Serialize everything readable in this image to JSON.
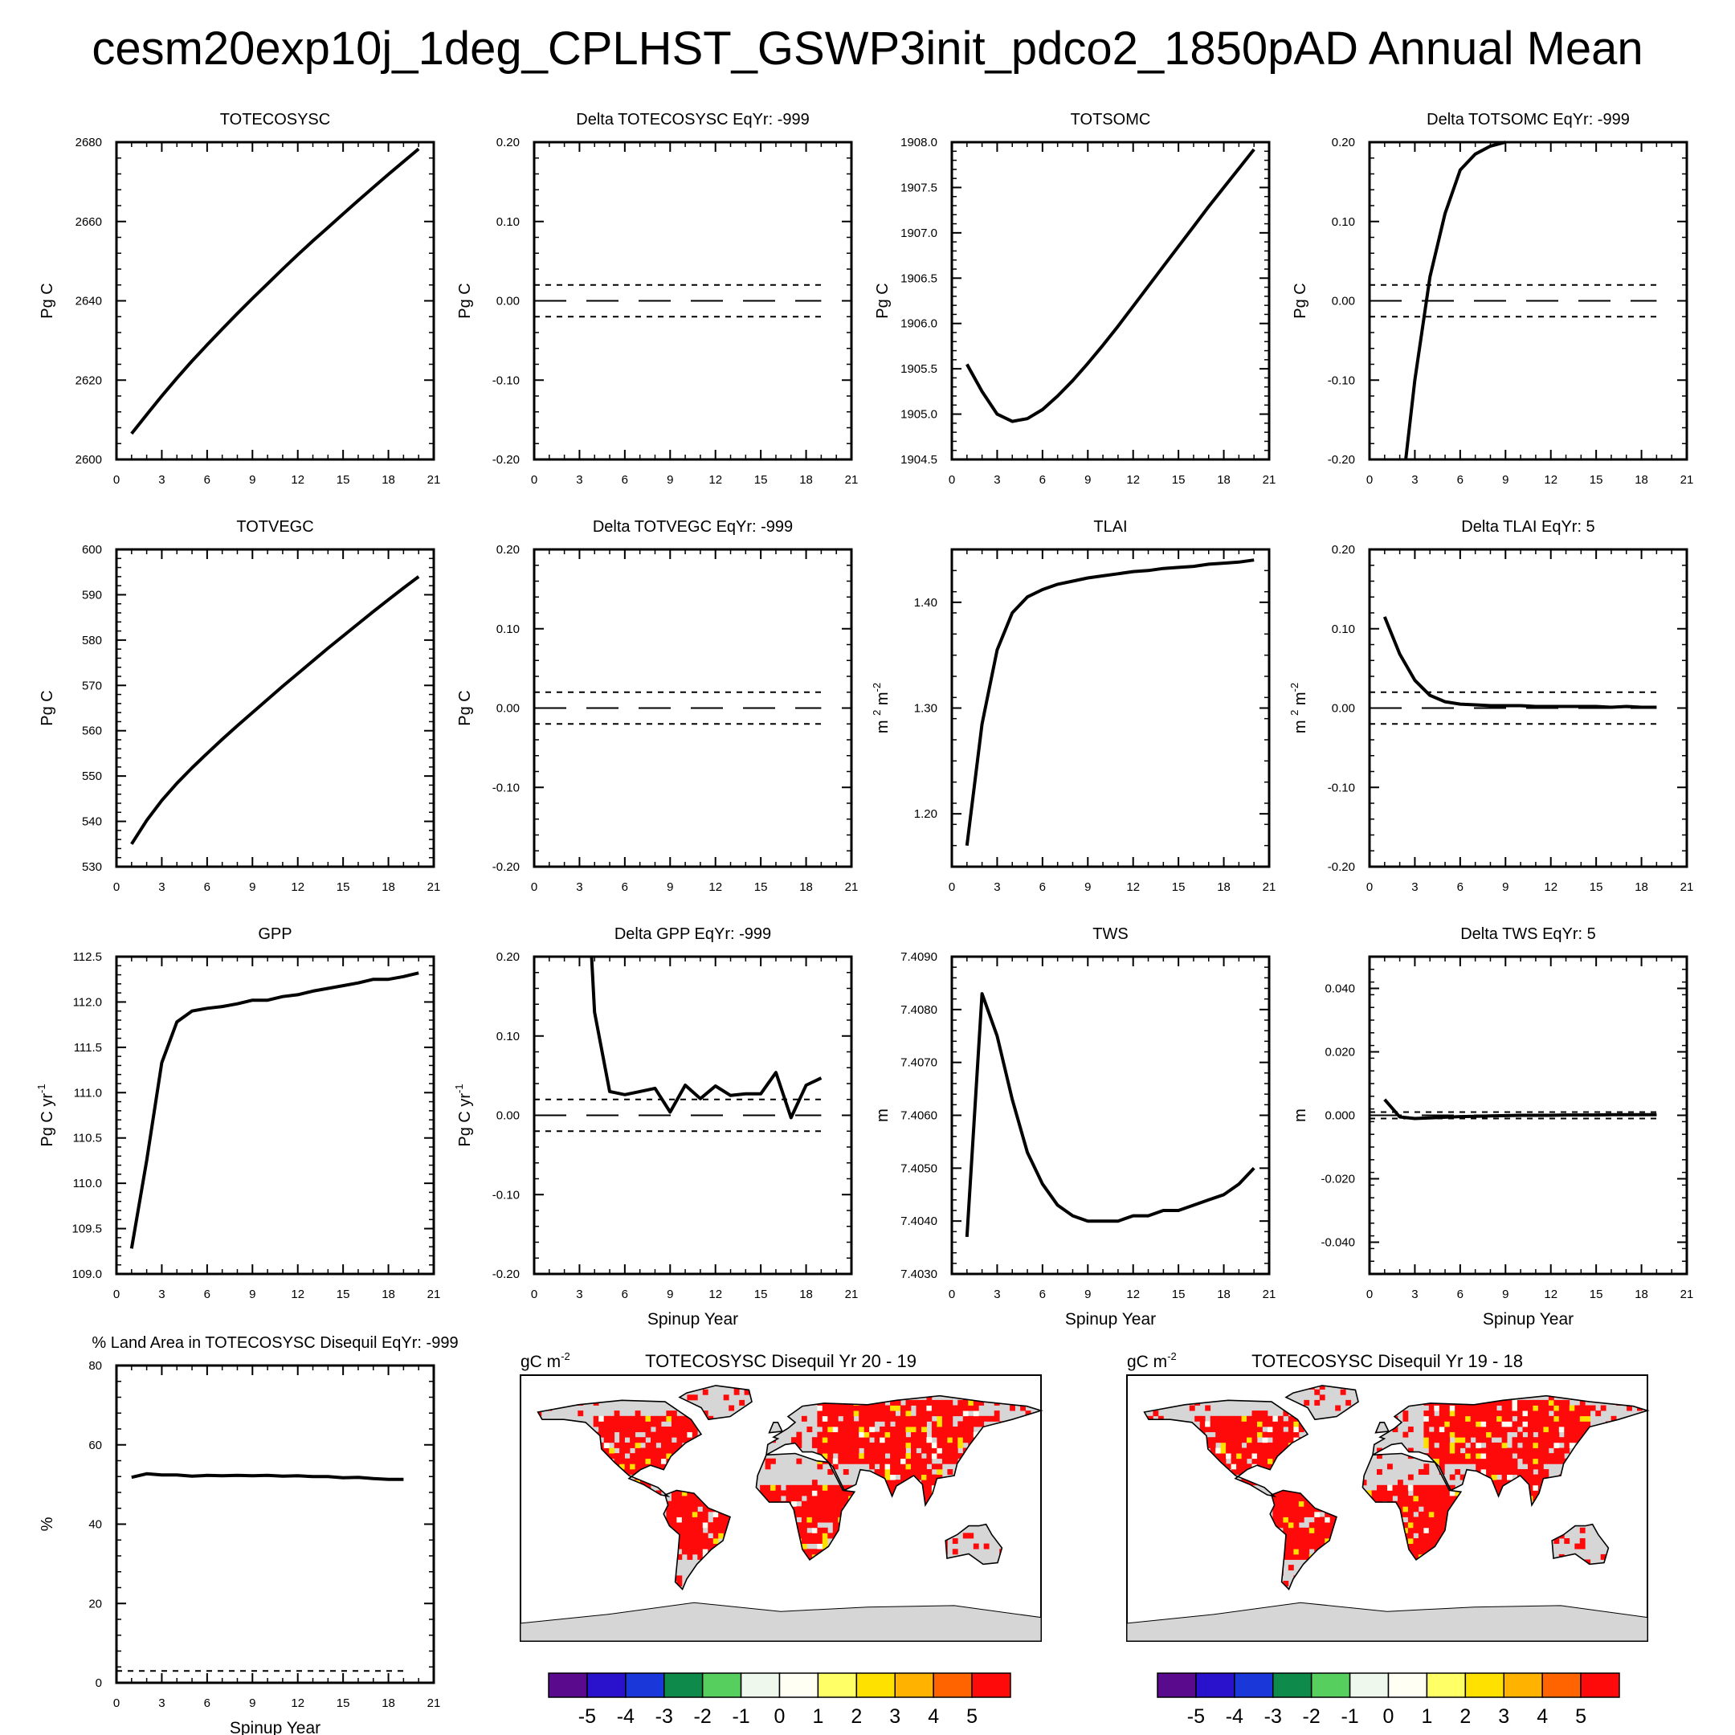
{
  "title": "cesm20exp10j_1deg_CPLHST_GSWP3init_pdco2_1850pAD Annual Mean",
  "chart_data": [
    {
      "type": "line",
      "title": "TOTECOSYSC",
      "ylabel": "Pg C",
      "xlabel": "",
      "xlim": [
        0,
        21
      ],
      "ylim": [
        2600,
        2680
      ],
      "xticks": [
        "0",
        "3",
        "6",
        "9",
        "12",
        "15",
        "18",
        "21"
      ],
      "yticks": [
        "2600",
        "2620",
        "2640",
        "2660",
        "2680"
      ],
      "x": [
        1,
        2,
        3,
        4,
        5,
        6,
        7,
        8,
        9,
        10,
        11,
        12,
        13,
        14,
        15,
        16,
        17,
        18,
        19,
        20
      ],
      "y": [
        2606.5,
        2611.3,
        2616.0,
        2620.5,
        2624.8,
        2628.9,
        2632.9,
        2636.8,
        2640.6,
        2644.3,
        2648.0,
        2651.6,
        2655.1,
        2658.5,
        2661.9,
        2665.3,
        2668.6,
        2671.9,
        2675.1,
        2678.3
      ],
      "ref_lines": []
    },
    {
      "type": "line",
      "title": "Delta TOTECOSYSC EqYr: -999",
      "ylabel": "Pg C",
      "xlabel": "",
      "xlim": [
        0,
        21
      ],
      "ylim": [
        -0.2,
        0.2
      ],
      "xticks": [
        "0",
        "3",
        "6",
        "9",
        "12",
        "15",
        "18",
        "21"
      ],
      "yticks": [
        "-0.20",
        "-0.10",
        "0.00",
        "0.10",
        "0.20"
      ],
      "x": [],
      "y": [],
      "ref_lines": [
        0.02,
        -0.02,
        0.0
      ]
    },
    {
      "type": "line",
      "title": "TOTSOMC",
      "ylabel": "Pg C",
      "xlabel": "",
      "xlim": [
        0,
        21
      ],
      "ylim": [
        1904.5,
        1908.0
      ],
      "xticks": [
        "0",
        "3",
        "6",
        "9",
        "12",
        "15",
        "18",
        "21"
      ],
      "yticks": [
        "1904.5",
        "1905.0",
        "1905.5",
        "1906.0",
        "1906.5",
        "1907.0",
        "1907.5",
        "1908.0"
      ],
      "x": [
        1,
        2,
        3,
        4,
        5,
        6,
        7,
        8,
        9,
        10,
        11,
        12,
        13,
        14,
        15,
        16,
        17,
        18,
        19,
        20
      ],
      "y": [
        1905.55,
        1905.25,
        1905.0,
        1904.92,
        1904.95,
        1905.05,
        1905.2,
        1905.37,
        1905.56,
        1905.76,
        1905.97,
        1906.19,
        1906.41,
        1906.63,
        1906.85,
        1907.07,
        1907.29,
        1907.5,
        1907.71,
        1907.92
      ],
      "ref_lines": []
    },
    {
      "type": "line",
      "title": "Delta TOTSOMC EqYr: -999",
      "ylabel": "Pg C",
      "xlabel": "",
      "xlim": [
        0,
        21
      ],
      "ylim": [
        -0.2,
        0.2
      ],
      "xticks": [
        "0",
        "3",
        "6",
        "9",
        "12",
        "15",
        "18",
        "21"
      ],
      "yticks": [
        "-0.20",
        "-0.10",
        "0.00",
        "0.10",
        "0.20"
      ],
      "x": [
        2.4,
        3,
        4,
        5,
        6,
        7,
        8,
        9
      ],
      "y": [
        -0.2,
        -0.1,
        0.03,
        0.11,
        0.165,
        0.185,
        0.195,
        0.2
      ],
      "ref_lines": [
        0.02,
        -0.02,
        0.0
      ]
    },
    {
      "type": "line",
      "title": "TOTVEGC",
      "ylabel": "Pg C",
      "xlabel": "",
      "xlim": [
        0,
        21
      ],
      "ylim": [
        530,
        600
      ],
      "xticks": [
        "0",
        "3",
        "6",
        "9",
        "12",
        "15",
        "18",
        "21"
      ],
      "yticks": [
        "530",
        "540",
        "550",
        "560",
        "570",
        "580",
        "590",
        "600"
      ],
      "x": [
        1,
        2,
        3,
        4,
        5,
        6,
        7,
        8,
        9,
        10,
        11,
        12,
        13,
        14,
        15,
        16,
        17,
        18,
        19,
        20
      ],
      "y": [
        535.0,
        540.2,
        544.6,
        548.4,
        551.8,
        555.0,
        558.1,
        561.1,
        564.0,
        566.9,
        569.8,
        572.6,
        575.4,
        578.2,
        580.9,
        583.6,
        586.3,
        588.9,
        591.5,
        594.0
      ],
      "ref_lines": []
    },
    {
      "type": "line",
      "title": "Delta TOTVEGC EqYr: -999",
      "ylabel": "Pg C",
      "xlabel": "",
      "xlim": [
        0,
        21
      ],
      "ylim": [
        -0.2,
        0.2
      ],
      "xticks": [
        "0",
        "3",
        "6",
        "9",
        "12",
        "15",
        "18",
        "21"
      ],
      "yticks": [
        "-0.20",
        "-0.10",
        "0.00",
        "0.10",
        "0.20"
      ],
      "x": [],
      "y": [],
      "ref_lines": [
        0.02,
        -0.02,
        0.0
      ]
    },
    {
      "type": "line",
      "title": "TLAI",
      "ylabel": "m 2 m-2",
      "xlabel": "",
      "xlim": [
        0,
        21
      ],
      "ylim": [
        1.15,
        1.45
      ],
      "xticks": [
        "0",
        "3",
        "6",
        "9",
        "12",
        "15",
        "18",
        "21"
      ],
      "yticks": [
        "1.20",
        "1.30",
        "1.40"
      ],
      "x": [
        1,
        2,
        3,
        4,
        5,
        6,
        7,
        8,
        9,
        10,
        11,
        12,
        13,
        14,
        15,
        16,
        17,
        18,
        19,
        20
      ],
      "y": [
        1.17,
        1.285,
        1.355,
        1.39,
        1.405,
        1.412,
        1.417,
        1.42,
        1.423,
        1.425,
        1.427,
        1.429,
        1.43,
        1.432,
        1.433,
        1.434,
        1.436,
        1.437,
        1.438,
        1.44
      ],
      "ref_lines": []
    },
    {
      "type": "line",
      "title": "Delta TLAI EqYr: 5",
      "ylabel": "m 2 m-2",
      "xlabel": "",
      "xlim": [
        0,
        21
      ],
      "ylim": [
        -0.2,
        0.2
      ],
      "xticks": [
        "0",
        "3",
        "6",
        "9",
        "12",
        "15",
        "18",
        "21"
      ],
      "yticks": [
        "-0.20",
        "-0.10",
        "0.00",
        "0.10",
        "0.20"
      ],
      "x": [
        1,
        2,
        3,
        4,
        5,
        6,
        7,
        8,
        9,
        10,
        11,
        12,
        13,
        14,
        15,
        16,
        17,
        18,
        19
      ],
      "y": [
        0.115,
        0.068,
        0.035,
        0.016,
        0.008,
        0.005,
        0.004,
        0.003,
        0.003,
        0.003,
        0.002,
        0.002,
        0.002,
        0.002,
        0.002,
        0.001,
        0.002,
        0.001,
        0.001
      ],
      "ref_lines": [
        0.02,
        -0.02,
        0.0
      ]
    },
    {
      "type": "line",
      "title": "GPP",
      "ylabel": "Pg C yr-1",
      "xlabel": "",
      "xlim": [
        0,
        21
      ],
      "ylim": [
        109,
        112.5
      ],
      "xticks": [
        "0",
        "3",
        "6",
        "9",
        "12",
        "15",
        "18",
        "21"
      ],
      "yticks": [
        "109.0",
        "109.5",
        "110.0",
        "110.5",
        "111.0",
        "111.5",
        "112.0",
        "112.5"
      ],
      "x": [
        1,
        2,
        3,
        4,
        5,
        6,
        7,
        8,
        9,
        10,
        11,
        12,
        13,
        14,
        15,
        16,
        17,
        18,
        19,
        20
      ],
      "y": [
        109.28,
        110.25,
        111.33,
        111.78,
        111.9,
        111.93,
        111.95,
        111.98,
        112.02,
        112.02,
        112.06,
        112.08,
        112.12,
        112.15,
        112.18,
        112.21,
        112.25,
        112.25,
        112.28,
        112.32
      ],
      "ref_lines": []
    },
    {
      "type": "line",
      "title": "Delta GPP EqYr: -999",
      "ylabel": "Pg C yr-1",
      "xlabel": "Spinup Year",
      "xlim": [
        0,
        21
      ],
      "ylim": [
        -0.2,
        0.2
      ],
      "xticks": [
        "0",
        "3",
        "6",
        "9",
        "12",
        "15",
        "18",
        "21"
      ],
      "yticks": [
        "-0.20",
        "-0.10",
        "0.00",
        "0.10",
        "0.20"
      ],
      "x": [
        3.8,
        4,
        5,
        6,
        7,
        8,
        9,
        10,
        11,
        12,
        13,
        14,
        15,
        16,
        17,
        18,
        19
      ],
      "y": [
        0.2,
        0.13,
        0.03,
        0.026,
        0.03,
        0.034,
        0.004,
        0.038,
        0.021,
        0.037,
        0.025,
        0.027,
        0.027,
        0.054,
        -0.003,
        0.038,
        0.047
      ],
      "ref_lines": [
        0.02,
        -0.02,
        0.0
      ]
    },
    {
      "type": "line",
      "title": "TWS",
      "ylabel": "m",
      "xlabel": "Spinup Year",
      "xlim": [
        0,
        21
      ],
      "ylim": [
        7.403,
        7.409
      ],
      "xticks": [
        "0",
        "3",
        "6",
        "9",
        "12",
        "15",
        "18",
        "21"
      ],
      "yticks": [
        "7.4030",
        "7.4040",
        "7.4050",
        "7.4060",
        "7.4070",
        "7.4080",
        "7.4090"
      ],
      "x": [
        1,
        2,
        3,
        4,
        5,
        6,
        7,
        8,
        9,
        10,
        11,
        12,
        13,
        14,
        15,
        16,
        17,
        18,
        19,
        20
      ],
      "y": [
        7.4037,
        7.4083,
        7.4075,
        7.4063,
        7.4053,
        7.4047,
        7.4043,
        7.4041,
        7.404,
        7.404,
        7.404,
        7.4041,
        7.4041,
        7.4042,
        7.4042,
        7.4043,
        7.4044,
        7.4045,
        7.4047,
        7.405
      ],
      "ref_lines": []
    },
    {
      "type": "line",
      "title": "Delta TWS EqYr: 5",
      "ylabel": "m",
      "xlabel": "Spinup Year",
      "xlim": [
        0,
        21
      ],
      "ylim": [
        -0.05,
        0.05
      ],
      "xticks": [
        "0",
        "3",
        "6",
        "9",
        "12",
        "15",
        "18",
        "21"
      ],
      "yticks": [
        "-0.040",
        "-0.020",
        "0.000",
        "0.020",
        "0.040"
      ],
      "x": [
        1,
        2,
        3,
        4,
        5,
        6,
        7,
        8,
        9,
        10,
        11,
        12,
        13,
        14,
        15,
        16,
        17,
        18,
        19
      ],
      "y": [
        0.005,
        -0.0005,
        -0.001,
        -0.0008,
        -0.0006,
        -0.0004,
        -0.0003,
        -0.0002,
        -0.0001,
        0.0,
        0.0,
        0.0,
        0.0001,
        0.0001,
        0.0001,
        0.0002,
        0.0002,
        0.0002,
        0.0002
      ],
      "ref_lines": [
        0.001,
        -0.001,
        0.0
      ]
    },
    {
      "type": "line",
      "title": "% Land Area in TOTECOSYSC Disequil EqYr: -999",
      "ylabel": "%",
      "xlabel": "Spinup Year",
      "xlim": [
        0,
        21
      ],
      "ylim": [
        0,
        80
      ],
      "xticks": [
        "0",
        "3",
        "6",
        "9",
        "12",
        "15",
        "18",
        "21"
      ],
      "yticks": [
        "0",
        "20",
        "40",
        "60",
        "80"
      ],
      "x": [
        1,
        2,
        3,
        4,
        5,
        6,
        7,
        8,
        9,
        10,
        11,
        12,
        13,
        14,
        15,
        16,
        17,
        18,
        19
      ],
      "y": [
        51.8,
        52.7,
        52.4,
        52.4,
        52.1,
        52.3,
        52.2,
        52.3,
        52.2,
        52.3,
        52.1,
        52.2,
        52.0,
        52.0,
        51.7,
        51.8,
        51.5,
        51.3,
        51.3
      ],
      "ref_lines": [
        3.0
      ]
    },
    {
      "type": "heatmap",
      "title": "TOTECOSYSC Disequil Yr 20 - 19",
      "units": "gC m-2",
      "colorbar_labels": [
        "-5",
        "-4",
        "-3",
        "-2",
        "-1",
        "0",
        "1",
        "2",
        "3",
        "4",
        "5"
      ],
      "colorbar_colors": [
        "#5a0a8c",
        "#2a12cc",
        "#1a37d9",
        "#0e8a4a",
        "#56cf5e",
        "#eef8ec",
        "#fffff4",
        "#ffff66",
        "#ffe100",
        "#ffb300",
        "#ff6400",
        "#ff0a0a"
      ]
    },
    {
      "type": "heatmap",
      "title": "TOTECOSYSC Disequil Yr 19 - 18",
      "units": "gC m-2",
      "colorbar_labels": [
        "-5",
        "-4",
        "-3",
        "-2",
        "-1",
        "0",
        "1",
        "2",
        "3",
        "4",
        "5"
      ],
      "colorbar_colors": [
        "#5a0a8c",
        "#2a12cc",
        "#1a37d9",
        "#0e8a4a",
        "#56cf5e",
        "#eef8ec",
        "#fffff4",
        "#ffff66",
        "#ffe100",
        "#ffb300",
        "#ff6400",
        "#ff0a0a"
      ]
    }
  ]
}
